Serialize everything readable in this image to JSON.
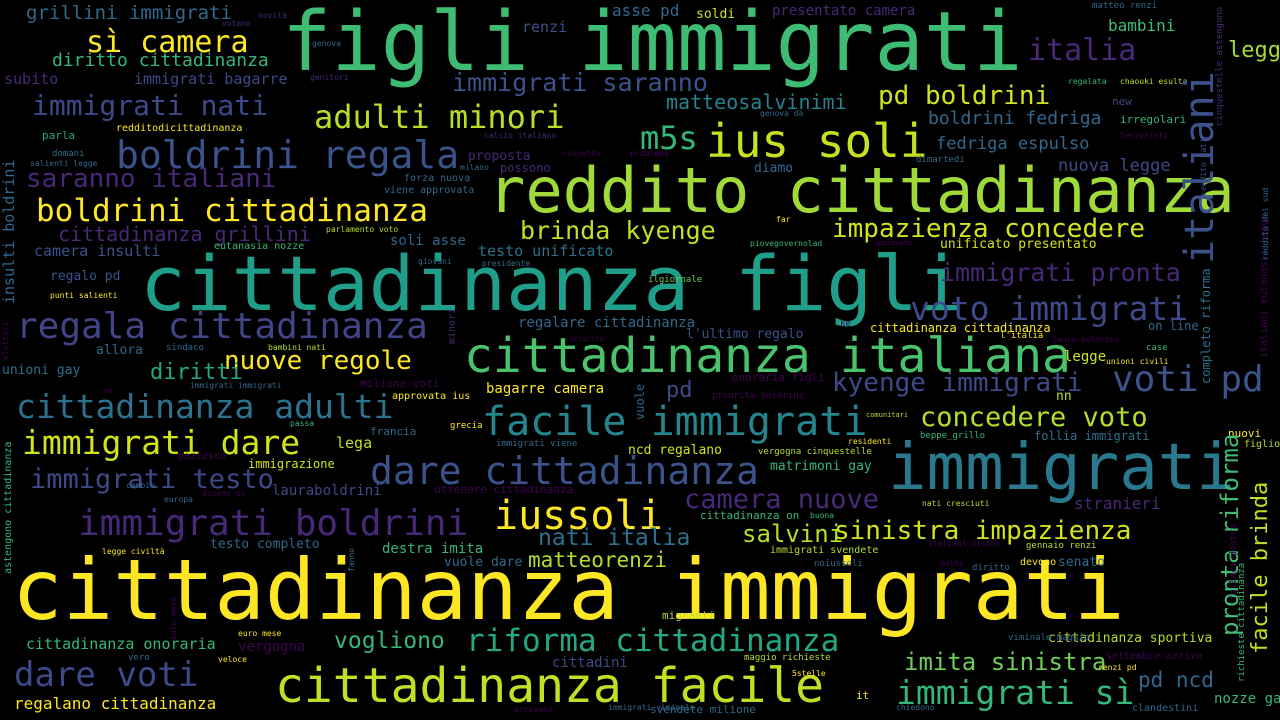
{
  "wordcloud": {
    "palette": [
      "#fde725",
      "#b5de2b",
      "#6ece58",
      "#35b779",
      "#1f9e89",
      "#26828e",
      "#31688e",
      "#3e4989",
      "#482878",
      "#440154"
    ],
    "words": [
      {
        "text": "cittadinanza immigrati",
        "color": "#fde725"
      },
      {
        "text": "figli immigrati",
        "color": "#3fbc73"
      },
      {
        "text": "cittadinanza figli",
        "color": "#1f9e89"
      },
      {
        "text": "reddito cittadinanza",
        "color": "#a0da39"
      },
      {
        "text": "cittadinanza facile",
        "color": "#c2df23"
      },
      {
        "text": "immigrati",
        "color": "#2a788e"
      },
      {
        "text": "cittadinanza italiana",
        "color": "#4ac16d"
      },
      {
        "text": "ius soli",
        "color": "#c8e020"
      },
      {
        "text": "boldrini regala",
        "color": "#3b528b"
      },
      {
        "text": "boldrini cittadinanza",
        "color": "#fde725"
      },
      {
        "text": "regala cittadinanza",
        "color": "#414487"
      },
      {
        "text": "cittadinanza adulti",
        "color": "#2c728e"
      },
      {
        "text": "immigrati dare",
        "color": "#d2e21b"
      },
      {
        "text": "facile immigrati",
        "color": "#25858e"
      },
      {
        "text": "dare cittadinanza",
        "color": "#3b528b"
      },
      {
        "text": "immigrati boldrini",
        "color": "#482878"
      },
      {
        "text": "riforma cittadinanza",
        "color": "#22a884"
      },
      {
        "text": "immigrati sì",
        "color": "#35b779"
      },
      {
        "text": "dare voti",
        "color": "#3e4989"
      },
      {
        "text": "italiani",
        "color": "#3b528b"
      },
      {
        "text": "legge cittadinanza",
        "color": "#a5db36"
      },
      {
        "text": "voto immigrati",
        "color": "#3e4989"
      },
      {
        "text": "voti pd",
        "color": "#3b528b"
      },
      {
        "text": "iussoli",
        "color": "#fde725"
      },
      {
        "text": "adulti minori",
        "color": "#b8de29"
      },
      {
        "text": "nuove regole",
        "color": "#fde725"
      },
      {
        "text": "sì camera",
        "color": "#fde725"
      },
      {
        "text": "italia",
        "color": "#482878"
      },
      {
        "text": "pronta riforma",
        "color": "#3fbc73"
      },
      {
        "text": "facile brinda",
        "color": "#c2df23"
      },
      {
        "text": "immigrati nati",
        "color": "#3e4989"
      },
      {
        "text": "immigrati testo",
        "color": "#3e4989"
      },
      {
        "text": "saranno italiani",
        "color": "#482878"
      },
      {
        "text": "immigrati saranno",
        "color": "#3b528b"
      },
      {
        "text": "m5s",
        "color": "#35b779"
      },
      {
        "text": "pd boldrini",
        "color": "#d2e21b"
      },
      {
        "text": "brinda kyenge",
        "color": "#c2df23"
      },
      {
        "text": "impazienza concedere",
        "color": "#d2e21b"
      },
      {
        "text": "immigrati pronta",
        "color": "#482878"
      },
      {
        "text": "kyenge immigrati",
        "color": "#3e4989"
      },
      {
        "text": "concedere voto",
        "color": "#b5de2b"
      },
      {
        "text": "camera nuove",
        "color": "#482878"
      },
      {
        "text": "sinistra impazienza",
        "color": "#d2e21b"
      },
      {
        "text": "imita sinistra",
        "color": "#6ece58"
      },
      {
        "text": "salvini",
        "color": "#b5de2b"
      },
      {
        "text": "nati italia",
        "color": "#2c728e"
      },
      {
        "text": "matteorenzi",
        "color": "#b5de2b"
      },
      {
        "text": "vogliono",
        "color": "#35b779"
      },
      {
        "text": "pd ncd",
        "color": "#31688e"
      },
      {
        "text": "cittadinanza grillini",
        "color": "#482878"
      },
      {
        "text": "diritti",
        "color": "#22a884"
      },
      {
        "text": "matteosalvinimi",
        "color": "#26828e"
      },
      {
        "text": "boldrini fedriga",
        "color": "#31688e"
      },
      {
        "text": "fedriga espulso",
        "color": "#31688e"
      },
      {
        "text": "nuova legge",
        "color": "#3e4989"
      },
      {
        "text": "grillini immigrati",
        "color": "#31688e"
      },
      {
        "text": "diritto cittadinanza",
        "color": "#35b779"
      },
      {
        "text": "immigrati bagarre",
        "color": "#3e4989"
      },
      {
        "text": "renzi",
        "color": "#3b528b"
      },
      {
        "text": "soldi",
        "color": "#d2e21b"
      },
      {
        "text": "asse pd",
        "color": "#31688e"
      },
      {
        "text": "presentato camera",
        "color": "#482878"
      },
      {
        "text": "bambini",
        "color": "#3fbc73"
      },
      {
        "text": "subito",
        "color": "#482878"
      },
      {
        "text": "testo unificato",
        "color": "#2c728e"
      },
      {
        "text": "camera insulti",
        "color": "#3b528b"
      },
      {
        "text": "soli asse",
        "color": "#31688e"
      },
      {
        "text": "unificato presentato",
        "color": "#d2e21b"
      },
      {
        "text": "regalare cittadinanza",
        "color": "#31688e"
      },
      {
        "text": "l'ultimo regalo",
        "color": "#3b528b"
      },
      {
        "text": "cittadinanza cittadinanza",
        "color": "#fde725"
      },
      {
        "text": "on line",
        "color": "#31688e"
      },
      {
        "text": "legge",
        "color": "#d2e21b"
      },
      {
        "text": "bagarre camera",
        "color": "#fde725"
      },
      {
        "text": "onoraria figli",
        "color": "#440154"
      },
      {
        "text": "pd",
        "color": "#3e4989"
      },
      {
        "text": "nn",
        "color": "#c2df23"
      },
      {
        "text": "lega",
        "color": "#c2df23"
      },
      {
        "text": "ncd regalano",
        "color": "#d2e21b"
      },
      {
        "text": "matrimoni gay",
        "color": "#35b779"
      },
      {
        "text": "follia immigrati",
        "color": "#2c728e"
      },
      {
        "text": "stranieri",
        "color": "#482878"
      },
      {
        "text": "lauraboldrini",
        "color": "#3e4989"
      },
      {
        "text": "ottenere cittadinanza",
        "color": "#440154"
      },
      {
        "text": "cittadinanza onoraria",
        "color": "#35b779"
      },
      {
        "text": "vergogna",
        "color": "#440154"
      },
      {
        "text": "cittadini",
        "color": "#3e4989"
      },
      {
        "text": "destra imita",
        "color": "#35b779"
      },
      {
        "text": "vuole dare",
        "color": "#31688e"
      },
      {
        "text": "senato",
        "color": "#31688e"
      },
      {
        "text": "cittadinanza sportiva",
        "color": "#b5de2b"
      },
      {
        "text": "regalano cittadinanza",
        "color": "#fde725"
      },
      {
        "text": "testo completo",
        "color": "#31688e"
      },
      {
        "text": "immigrazione",
        "color": "#d2e21b"
      },
      {
        "text": "milione voti",
        "color": "#440154"
      },
      {
        "text": "approvata ius",
        "color": "#fde725"
      },
      {
        "text": "regalo pd",
        "color": "#3b528b"
      },
      {
        "text": "eutanasia nozze",
        "color": "#35b779"
      },
      {
        "text": "allora",
        "color": "#31688e"
      },
      {
        "text": "unioni gay",
        "color": "#2c728e"
      },
      {
        "text": "francia",
        "color": "#31688e"
      },
      {
        "text": "proposta",
        "color": "#482878"
      },
      {
        "text": "parla",
        "color": "#22a884"
      },
      {
        "text": "insulti boldrini",
        "color": "#31688e"
      },
      {
        "text": "cinquestelle astengono",
        "color": "#482878"
      },
      {
        "text": "italiani eutanasia legge",
        "color": "#440154"
      },
      {
        "text": "completo riforma",
        "color": "#2c728e"
      },
      {
        "text": "cittadinanza on",
        "color": "#35b779"
      },
      {
        "text": "possono",
        "color": "#482878"
      },
      {
        "text": "diamo",
        "color": "#31688e"
      },
      {
        "text": "minori",
        "color": "#482878"
      },
      {
        "text": "vuole",
        "color": "#31688e"
      },
      {
        "text": "nozze gay",
        "color": "#35b779"
      },
      {
        "text": "svendete milione",
        "color": "#31688e"
      },
      {
        "text": "it",
        "color": "#fde725"
      },
      {
        "text": "migranti",
        "color": "#b5de2b"
      },
      {
        "text": "nuovi",
        "color": "#fde725"
      },
      {
        "text": "figlio",
        "color": "#b5de2b"
      },
      {
        "text": "devono",
        "color": "#fde725"
      },
      {
        "text": "irregolari",
        "color": "#35b779"
      },
      {
        "text": "new",
        "color": "#3e4989"
      },
      {
        "text": "reddito nati",
        "color": "#3e4989"
      },
      {
        "text": "reddito del sud",
        "color": "#31688e"
      },
      {
        "text": "clandestini",
        "color": "#31688e"
      },
      {
        "text": "case",
        "color": "#35b779"
      },
      {
        "text": "votano",
        "color": "#482878"
      },
      {
        "text": "novità",
        "color": "#482878"
      },
      {
        "text": "genova",
        "color": "#31688e"
      },
      {
        "text": "genitori",
        "color": "#482878"
      },
      {
        "text": "redditodicittadinanza",
        "color": "#fde725"
      },
      {
        "text": "calcio italiano",
        "color": "#482878"
      },
      {
        "text": "genova dà",
        "color": "#31688e"
      },
      {
        "text": "regalata",
        "color": "#35b779"
      },
      {
        "text": "chaouki esulta",
        "color": "#c2df23"
      },
      {
        "text": "terroristi",
        "color": "#440154"
      },
      {
        "text": "matteo renzi",
        "color": "#31688e"
      },
      {
        "text": "domani",
        "color": "#2c728e"
      },
      {
        "text": "salienti legge",
        "color": "#31688e"
      },
      {
        "text": "milano",
        "color": "#31688e"
      },
      {
        "text": "rispetto",
        "color": "#440154"
      },
      {
        "text": "problema",
        "color": "#440154"
      },
      {
        "text": "dimartedi",
        "color": "#31688e"
      },
      {
        "text": "forza nuova",
        "color": "#31688e"
      },
      {
        "text": "viene approvata",
        "color": "#31688e"
      },
      {
        "text": "parlamento voto",
        "color": "#b5de2b"
      },
      {
        "text": "far",
        "color": "#fde725"
      },
      {
        "text": "piovegovernolad",
        "color": "#35b779"
      },
      {
        "text": "approvato",
        "color": "#440154"
      },
      {
        "text": "giovani",
        "color": "#31688e"
      },
      {
        "text": "presidente",
        "color": "#31688e"
      },
      {
        "text": "ilgiornale",
        "color": "#6ece58"
      },
      {
        "text": "punti salienti",
        "color": "#fde725"
      },
      {
        "text": "elettori",
        "color": "#440154"
      },
      {
        "text": "sindaco",
        "color": "#31688e"
      },
      {
        "text": "bambini nati",
        "color": "#b5de2b"
      },
      {
        "text": "priorità",
        "color": "#440154"
      },
      {
        "text": "ke",
        "color": "#440154"
      },
      {
        "text": "l'italia",
        "color": "#fde725"
      },
      {
        "text": "laura boldrini",
        "color": "#440154"
      },
      {
        "text": "unioni civili",
        "color": "#fde725"
      },
      {
        "text": "immigrati immigrati",
        "color": "#31688e"
      },
      {
        "text": "ue",
        "color": "#440154"
      },
      {
        "text": "priorità boldrini",
        "color": "#440154"
      },
      {
        "text": "comunitari",
        "color": "#b5de2b"
      },
      {
        "text": "passa",
        "color": "#35b779"
      },
      {
        "text": "grecia",
        "color": "#fde725"
      },
      {
        "text": "immigrati viene",
        "color": "#31688e"
      },
      {
        "text": "residenti",
        "color": "#fde725"
      },
      {
        "text": "beppe_grillo",
        "color": "#35b779"
      },
      {
        "text": "pazzesco",
        "color": "#440154"
      },
      {
        "text": "vergogna cinquestelle",
        "color": "#b5de2b"
      },
      {
        "text": "nati cresciuti",
        "color": "#b5de2b"
      },
      {
        "text": "buona",
        "color": "#35b779"
      },
      {
        "text": "italiani dicono",
        "color": "#440154"
      },
      {
        "text": "gennaio renzi",
        "color": "#b5de2b"
      },
      {
        "text": "fallaci destra",
        "color": "#440154"
      },
      {
        "text": "cambio",
        "color": "#31688e"
      },
      {
        "text": "europa",
        "color": "#31688e"
      },
      {
        "text": "dicono si",
        "color": "#440154"
      },
      {
        "text": "legge civiltà",
        "color": "#fde725"
      },
      {
        "text": "astengono cittadinanza",
        "color": "#35b779"
      },
      {
        "text": "immigrati svendete",
        "color": "#b5de2b"
      },
      {
        "text": "noiussoli",
        "color": "#31688e"
      },
      {
        "text": "molti",
        "color": "#440154"
      },
      {
        "text": "diritto",
        "color": "#31688e"
      },
      {
        "text": "fanno",
        "color": "#31688e"
      },
      {
        "text": "richieste cittadinanza",
        "color": "#35b779"
      },
      {
        "text": "euro mese",
        "color": "#440154"
      },
      {
        "text": "viminale maggio",
        "color": "#fde725"
      },
      {
        "text": "vero",
        "color": "#31688e"
      },
      {
        "text": "veloce",
        "color": "#31688e"
      },
      {
        "text": "maggio richieste",
        "color": "#fde725"
      },
      {
        "text": "settembre arriva",
        "color": "#b5de2b"
      },
      {
        "text": "renzi pd",
        "color": "#440154"
      },
      {
        "text": "5stelle",
        "color": "#fde725"
      },
      {
        "text": "arrivano",
        "color": "#fde725"
      },
      {
        "text": "immigrati viminale",
        "color": "#440154"
      },
      {
        "text": "chiedono",
        "color": "#31688e"
      },
      {
        "text": "lagabbia",
        "color": "#31688e"
      }
    ]
  }
}
